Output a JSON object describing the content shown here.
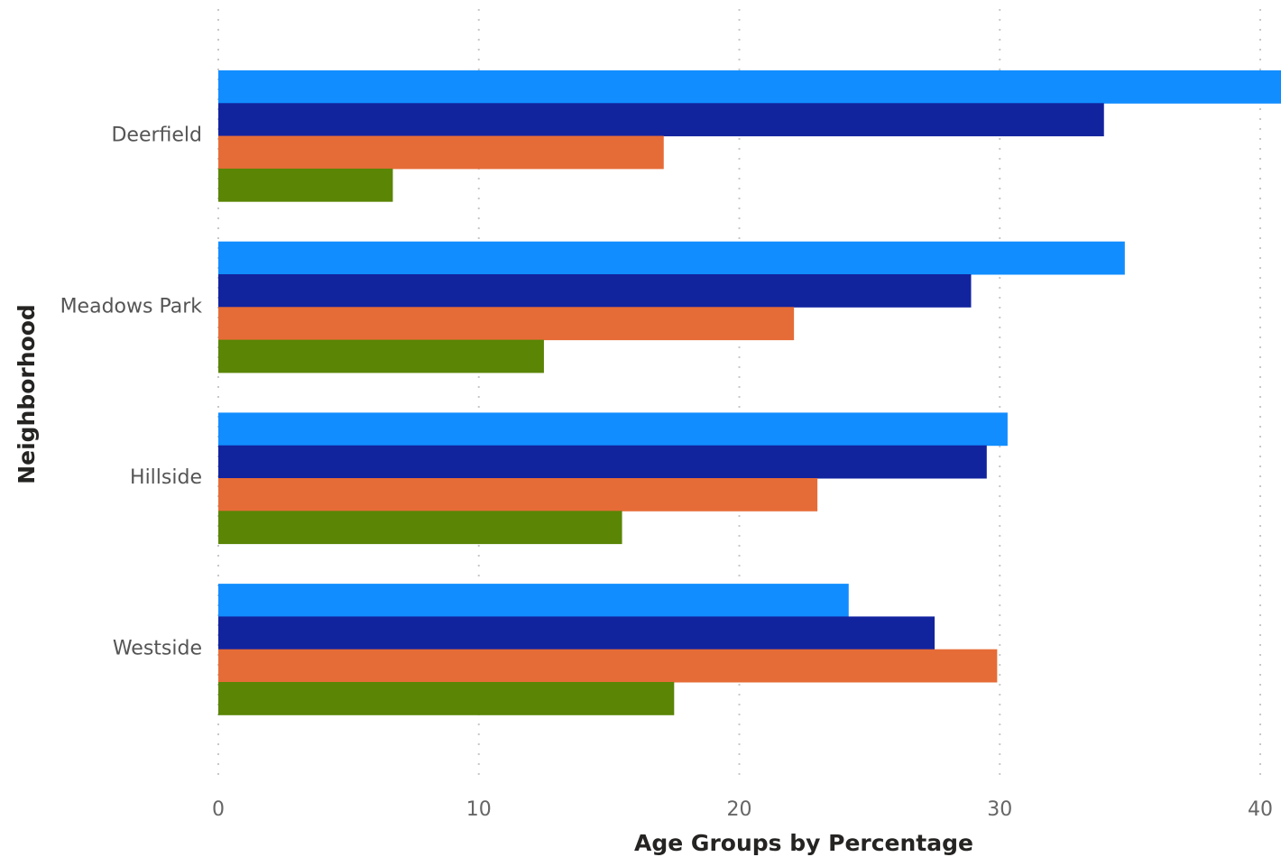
{
  "chart_data": {
    "type": "bar",
    "orientation": "horizontal",
    "title": "",
    "xlabel": "Age Groups by Percentage",
    "ylabel": "Neighborhood",
    "xlim": [
      0,
      40
    ],
    "xticks": [
      0,
      10,
      20,
      30,
      40
    ],
    "grid": true,
    "legend": "none",
    "categories": [
      "Deerfield",
      "Meadows Park",
      "Hillside",
      "Westside"
    ],
    "series": [
      {
        "color": "#118DFF",
        "values": [
          40.8,
          34.8,
          30.3,
          24.2
        ]
      },
      {
        "color": "#12239E",
        "values": [
          34.0,
          28.9,
          29.5,
          27.5
        ]
      },
      {
        "color": "#E66C37",
        "values": [
          17.1,
          22.1,
          23.0,
          29.9
        ]
      },
      {
        "color": "#5A8505",
        "values": [
          6.7,
          12.5,
          15.5,
          17.5
        ]
      }
    ]
  }
}
